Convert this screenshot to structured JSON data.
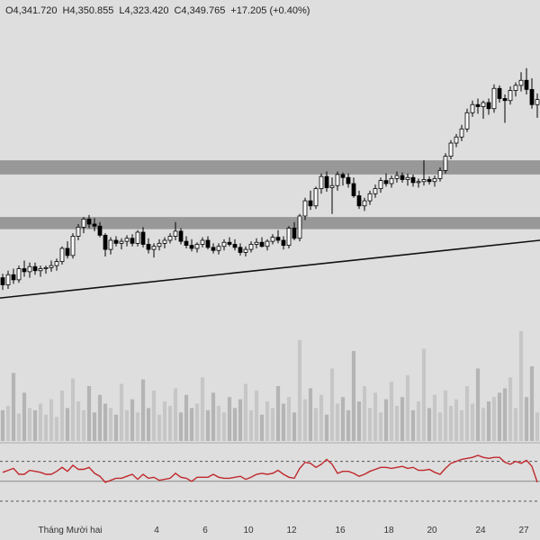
{
  "ohlc": {
    "open": "O4,341.720",
    "high": "H4,350.855",
    "low": "L4,323.420",
    "close": "C4,349.765",
    "change": "+17.205 (+0.40%)"
  },
  "colors": {
    "background": "#dedede",
    "candle_up": "#ffffff",
    "candle_down": "#000000",
    "zone": "#8c8c8c",
    "trendline": "#111111",
    "rsi_line": "#c0282c",
    "volume_bar": "#b4b4b4"
  },
  "chart_data": [
    {
      "type": "candlestick",
      "x_ticks": [
        {
          "label": "Tháng Mười hai",
          "pos": 3
        },
        {
          "label": "4",
          "pos": 29
        },
        {
          "label": "6",
          "pos": 38
        },
        {
          "label": "10",
          "pos": 46
        },
        {
          "label": "12",
          "pos": 54
        },
        {
          "label": "16",
          "pos": 63
        },
        {
          "label": "18",
          "pos": 72
        },
        {
          "label": "20",
          "pos": 80
        },
        {
          "label": "24",
          "pos": 89
        },
        {
          "label": "27",
          "pos": 97
        }
      ],
      "price_range": [
        4060,
        4380
      ],
      "zones": [
        [
          4261,
          4275
        ],
        [
          4207,
          4219
        ]
      ],
      "trendline": {
        "from": [
          0,
          4139
        ],
        "to": [
          100,
          4196
        ]
      },
      "candles": [
        {
          "o": 4159,
          "h": 4163,
          "l": 4147,
          "c": 4152
        },
        {
          "o": 4152,
          "h": 4166,
          "l": 4148,
          "c": 4162
        },
        {
          "o": 4162,
          "h": 4168,
          "l": 4153,
          "c": 4157
        },
        {
          "o": 4157,
          "h": 4171,
          "l": 4154,
          "c": 4168
        },
        {
          "o": 4168,
          "h": 4176,
          "l": 4160,
          "c": 4165
        },
        {
          "o": 4165,
          "h": 4174,
          "l": 4159,
          "c": 4170
        },
        {
          "o": 4170,
          "h": 4174,
          "l": 4162,
          "c": 4166
        },
        {
          "o": 4166,
          "h": 4171,
          "l": 4160,
          "c": 4168
        },
        {
          "o": 4168,
          "h": 4171,
          "l": 4163,
          "c": 4169
        },
        {
          "o": 4169,
          "h": 4176,
          "l": 4165,
          "c": 4171
        },
        {
          "o": 4171,
          "h": 4178,
          "l": 4166,
          "c": 4175
        },
        {
          "o": 4175,
          "h": 4190,
          "l": 4172,
          "c": 4188
        },
        {
          "o": 4188,
          "h": 4195,
          "l": 4178,
          "c": 4181
        },
        {
          "o": 4181,
          "h": 4203,
          "l": 4178,
          "c": 4200
        },
        {
          "o": 4200,
          "h": 4212,
          "l": 4196,
          "c": 4209
        },
        {
          "o": 4209,
          "h": 4219,
          "l": 4203,
          "c": 4217
        },
        {
          "o": 4217,
          "h": 4221,
          "l": 4208,
          "c": 4212
        },
        {
          "o": 4212,
          "h": 4218,
          "l": 4205,
          "c": 4210
        },
        {
          "o": 4210,
          "h": 4214,
          "l": 4199,
          "c": 4201
        },
        {
          "o": 4201,
          "h": 4203,
          "l": 4180,
          "c": 4187
        },
        {
          "o": 4187,
          "h": 4199,
          "l": 4182,
          "c": 4196
        },
        {
          "o": 4196,
          "h": 4200,
          "l": 4190,
          "c": 4193
        },
        {
          "o": 4193,
          "h": 4198,
          "l": 4187,
          "c": 4195
        },
        {
          "o": 4195,
          "h": 4201,
          "l": 4190,
          "c": 4198
        },
        {
          "o": 4198,
          "h": 4202,
          "l": 4190,
          "c": 4193
        },
        {
          "o": 4193,
          "h": 4206,
          "l": 4190,
          "c": 4204
        },
        {
          "o": 4204,
          "h": 4209,
          "l": 4189,
          "c": 4192
        },
        {
          "o": 4192,
          "h": 4198,
          "l": 4183,
          "c": 4187
        },
        {
          "o": 4187,
          "h": 4193,
          "l": 4179,
          "c": 4190
        },
        {
          "o": 4190,
          "h": 4197,
          "l": 4186,
          "c": 4193
        },
        {
          "o": 4193,
          "h": 4199,
          "l": 4188,
          "c": 4196
        },
        {
          "o": 4196,
          "h": 4203,
          "l": 4193,
          "c": 4200
        },
        {
          "o": 4200,
          "h": 4214,
          "l": 4196,
          "c": 4205
        },
        {
          "o": 4205,
          "h": 4208,
          "l": 4192,
          "c": 4195
        },
        {
          "o": 4195,
          "h": 4200,
          "l": 4188,
          "c": 4191
        },
        {
          "o": 4191,
          "h": 4197,
          "l": 4185,
          "c": 4188
        },
        {
          "o": 4188,
          "h": 4194,
          "l": 4184,
          "c": 4192
        },
        {
          "o": 4192,
          "h": 4199,
          "l": 4189,
          "c": 4196
        },
        {
          "o": 4196,
          "h": 4200,
          "l": 4187,
          "c": 4189
        },
        {
          "o": 4189,
          "h": 4193,
          "l": 4183,
          "c": 4186
        },
        {
          "o": 4186,
          "h": 4193,
          "l": 4182,
          "c": 4190
        },
        {
          "o": 4190,
          "h": 4197,
          "l": 4186,
          "c": 4194
        },
        {
          "o": 4194,
          "h": 4199,
          "l": 4190,
          "c": 4192
        },
        {
          "o": 4192,
          "h": 4197,
          "l": 4186,
          "c": 4189
        },
        {
          "o": 4189,
          "h": 4193,
          "l": 4181,
          "c": 4184
        },
        {
          "o": 4184,
          "h": 4190,
          "l": 4180,
          "c": 4187
        },
        {
          "o": 4187,
          "h": 4195,
          "l": 4184,
          "c": 4192
        },
        {
          "o": 4192,
          "h": 4198,
          "l": 4188,
          "c": 4194
        },
        {
          "o": 4194,
          "h": 4199,
          "l": 4189,
          "c": 4190
        },
        {
          "o": 4190,
          "h": 4197,
          "l": 4186,
          "c": 4195
        },
        {
          "o": 4195,
          "h": 4202,
          "l": 4192,
          "c": 4199
        },
        {
          "o": 4199,
          "h": 4206,
          "l": 4193,
          "c": 4196
        },
        {
          "o": 4196,
          "h": 4200,
          "l": 4187,
          "c": 4191
        },
        {
          "o": 4191,
          "h": 4210,
          "l": 4188,
          "c": 4208
        },
        {
          "o": 4208,
          "h": 4214,
          "l": 4196,
          "c": 4198
        },
        {
          "o": 4198,
          "h": 4222,
          "l": 4195,
          "c": 4220
        },
        {
          "o": 4220,
          "h": 4238,
          "l": 4216,
          "c": 4235
        },
        {
          "o": 4235,
          "h": 4245,
          "l": 4226,
          "c": 4230
        },
        {
          "o": 4230,
          "h": 4249,
          "l": 4227,
          "c": 4247
        },
        {
          "o": 4247,
          "h": 4262,
          "l": 4242,
          "c": 4259
        },
        {
          "o": 4259,
          "h": 4264,
          "l": 4244,
          "c": 4248
        },
        {
          "o": 4248,
          "h": 4258,
          "l": 4222,
          "c": 4250
        },
        {
          "o": 4250,
          "h": 4264,
          "l": 4245,
          "c": 4261
        },
        {
          "o": 4261,
          "h": 4263,
          "l": 4250,
          "c": 4258
        },
        {
          "o": 4258,
          "h": 4262,
          "l": 4248,
          "c": 4252
        },
        {
          "o": 4252,
          "h": 4258,
          "l": 4238,
          "c": 4240
        },
        {
          "o": 4240,
          "h": 4245,
          "l": 4227,
          "c": 4230
        },
        {
          "o": 4230,
          "h": 4238,
          "l": 4225,
          "c": 4235
        },
        {
          "o": 4235,
          "h": 4245,
          "l": 4231,
          "c": 4242
        },
        {
          "o": 4242,
          "h": 4251,
          "l": 4238,
          "c": 4247
        },
        {
          "o": 4247,
          "h": 4258,
          "l": 4243,
          "c": 4255
        },
        {
          "o": 4255,
          "h": 4262,
          "l": 4249,
          "c": 4252
        },
        {
          "o": 4252,
          "h": 4260,
          "l": 4248,
          "c": 4257
        },
        {
          "o": 4257,
          "h": 4264,
          "l": 4253,
          "c": 4260
        },
        {
          "o": 4260,
          "h": 4263,
          "l": 4253,
          "c": 4256
        },
        {
          "o": 4256,
          "h": 4262,
          "l": 4250,
          "c": 4258
        },
        {
          "o": 4258,
          "h": 4261,
          "l": 4249,
          "c": 4253
        },
        {
          "o": 4253,
          "h": 4257,
          "l": 4248,
          "c": 4254
        },
        {
          "o": 4254,
          "h": 4275,
          "l": 4250,
          "c": 4256
        },
        {
          "o": 4256,
          "h": 4259,
          "l": 4251,
          "c": 4254
        },
        {
          "o": 4254,
          "h": 4260,
          "l": 4249,
          "c": 4257
        },
        {
          "o": 4257,
          "h": 4268,
          "l": 4254,
          "c": 4265
        },
        {
          "o": 4265,
          "h": 4282,
          "l": 4262,
          "c": 4279
        },
        {
          "o": 4279,
          "h": 4295,
          "l": 4276,
          "c": 4292
        },
        {
          "o": 4292,
          "h": 4301,
          "l": 4288,
          "c": 4298
        },
        {
          "o": 4298,
          "h": 4310,
          "l": 4294,
          "c": 4306
        },
        {
          "o": 4306,
          "h": 4326,
          "l": 4303,
          "c": 4322
        },
        {
          "o": 4322,
          "h": 4334,
          "l": 4318,
          "c": 4330
        },
        {
          "o": 4330,
          "h": 4336,
          "l": 4321,
          "c": 4328
        },
        {
          "o": 4328,
          "h": 4334,
          "l": 4316,
          "c": 4332
        },
        {
          "o": 4332,
          "h": 4336,
          "l": 4320,
          "c": 4326
        },
        {
          "o": 4326,
          "h": 4350,
          "l": 4322,
          "c": 4346
        },
        {
          "o": 4346,
          "h": 4349,
          "l": 4332,
          "c": 4336
        },
        {
          "o": 4336,
          "h": 4340,
          "l": 4312,
          "c": 4334
        },
        {
          "o": 4334,
          "h": 4348,
          "l": 4330,
          "c": 4344
        },
        {
          "o": 4344,
          "h": 4352,
          "l": 4338,
          "c": 4349
        },
        {
          "o": 4349,
          "h": 4362,
          "l": 4343,
          "c": 4354
        },
        {
          "o": 4354,
          "h": 4366,
          "l": 4340,
          "c": 4345
        },
        {
          "o": 4345,
          "h": 4356,
          "l": 4326,
          "c": 4330
        },
        {
          "o": 4330,
          "h": 4341,
          "l": 4317,
          "c": 4335
        }
      ],
      "volume": [
        28,
        32,
        62,
        25,
        44,
        30,
        28,
        34,
        24,
        38,
        22,
        46,
        30,
        57,
        36,
        28,
        50,
        26,
        42,
        34,
        30,
        24,
        52,
        28,
        38,
        26,
        56,
        30,
        46,
        24,
        36,
        32,
        48,
        26,
        42,
        30,
        34,
        58,
        28,
        44,
        32,
        26,
        40,
        30,
        38,
        52,
        28,
        46,
        24,
        36,
        30,
        50,
        34,
        40,
        26,
        92,
        38,
        48,
        30,
        42,
        24,
        66,
        34,
        40,
        28,
        82,
        36,
        50,
        30,
        44,
        26,
        38,
        54,
        32,
        40,
        60,
        28,
        36,
        84,
        30,
        42,
        26,
        46,
        32,
        38,
        28,
        50,
        34,
        66,
        30,
        36,
        40,
        44,
        48,
        58,
        30,
        100,
        40,
        68,
        26
      ],
      "rsi": [
        59,
        61,
        63,
        57,
        57,
        61,
        60,
        59,
        57,
        57,
        60,
        64,
        60,
        66,
        62,
        62,
        64,
        58,
        55,
        49,
        51,
        53,
        53,
        55,
        57,
        52,
        57,
        53,
        54,
        51,
        52,
        53,
        58,
        54,
        53,
        50,
        54,
        54,
        54,
        57,
        54,
        53,
        53,
        54,
        55,
        52,
        54,
        57,
        58,
        57,
        58,
        61,
        57,
        54,
        53,
        63,
        69,
        68,
        64,
        67,
        72,
        67,
        58,
        60,
        60,
        58,
        55,
        57,
        60,
        62,
        64,
        64,
        63,
        64,
        65,
        63,
        64,
        61,
        61,
        62,
        59,
        57,
        63,
        68,
        70,
        72,
        73,
        74,
        76,
        74,
        73,
        74,
        74,
        69,
        67,
        70,
        68,
        71,
        65,
        49
      ],
      "rsi_levels": [
        70,
        50,
        30
      ]
    }
  ]
}
